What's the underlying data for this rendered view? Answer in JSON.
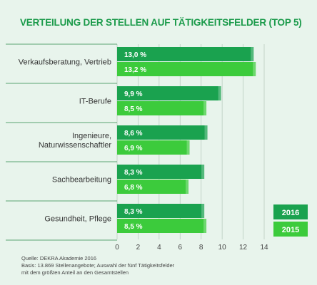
{
  "chart_data": {
    "type": "bar",
    "orientation": "horizontal",
    "title": "VERTEILUNG DER STELLEN AUF TÄTIGKEITSFELDER (TOP 5)",
    "categories": [
      [
        "Verkaufsberatung, Vertrieb"
      ],
      [
        "IT-Berufe"
      ],
      [
        "Ingenieure,",
        "Naturwissenschaftler"
      ],
      [
        "Sachbearbeitung"
      ],
      [
        "Gesundheit, Pflege"
      ]
    ],
    "series": [
      {
        "name": "2016",
        "values": [
          13.0,
          9.9,
          8.6,
          8.3,
          8.3
        ],
        "labels": [
          "13,0 %",
          "9,9 %",
          "8,6 %",
          "8,3 %",
          "8,3 %"
        ],
        "color": "#1aa24f"
      },
      {
        "name": "2015",
        "values": [
          13.2,
          8.5,
          6.9,
          6.8,
          8.5
        ],
        "labels": [
          "13,2 %",
          "8,5 %",
          "6,9 %",
          "6,8 %",
          "8,5 %"
        ],
        "color": "#3ccb3c"
      }
    ],
    "xlim": [
      0,
      14
    ],
    "xticks": [
      "0",
      "2",
      "4",
      "6",
      "8",
      "10",
      "12",
      "14"
    ],
    "grid": true,
    "legend_position": "bottom-right"
  },
  "footer": {
    "source": "Quelle: DEKRA Akademie 2016",
    "basis_line1": "Basis: 13.869 Stellenangebote; Auswahl der fünf Tätigkeitsfelder",
    "basis_line2": "mit dem größten Anteil an den Gesamtstellen"
  },
  "colors": {
    "panel_bg": "#e8f4ec",
    "title": "#1a9a4a",
    "separator": "#2b8a4a"
  }
}
